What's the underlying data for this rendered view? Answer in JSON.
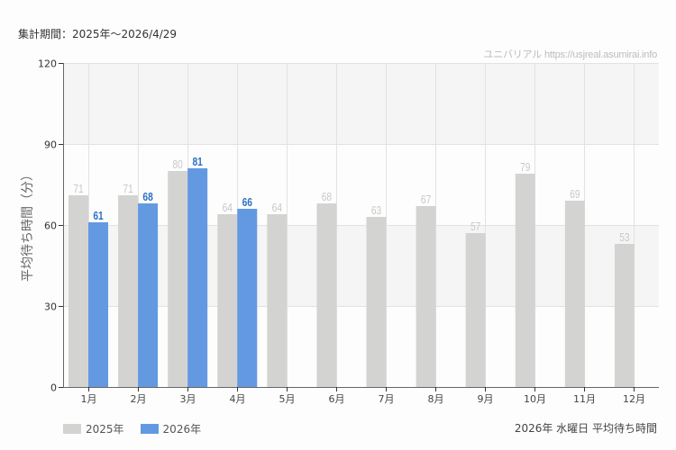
{
  "header": {
    "period": "集計期間：2025年～2026/4/29",
    "credit": "ユニバリアル  https://usjreal.asumirai.info"
  },
  "footer": {
    "caption": "2026年 水曜日 平均待ち時間"
  },
  "legend": [
    {
      "label": "2025年",
      "color": "#d3d4d2"
    },
    {
      "label": "2026年",
      "color": "#6399e1"
    }
  ],
  "colors": {
    "series_2025": "#d3d4d2",
    "series_2025_label": "#c8c8c8",
    "series_2026": "#6399e1",
    "series_2026_label": "#2d6fc4",
    "band": "#f4f5f4",
    "grid": "#e2e2e2",
    "axis": "#666666"
  },
  "chart_data": {
    "type": "bar",
    "title": "2026年 水曜日 平均待ち時間",
    "subtitle": "集計期間：2025年～2026/4/29",
    "xlabel": "",
    "ylabel": "平均待ち時間（分）",
    "ylim": [
      0,
      120
    ],
    "yticks": [
      0,
      30,
      60,
      90,
      120
    ],
    "grid": true,
    "legend_position": "bottom-left",
    "categories": [
      "1月",
      "2月",
      "3月",
      "4月",
      "5月",
      "6月",
      "7月",
      "8月",
      "9月",
      "10月",
      "11月",
      "12月"
    ],
    "series": [
      {
        "name": "2025年",
        "values": [
          71,
          71,
          80,
          64,
          64,
          68,
          63,
          67,
          57,
          79,
          69,
          53
        ]
      },
      {
        "name": "2026年",
        "values": [
          61,
          68,
          81,
          66,
          null,
          null,
          null,
          null,
          null,
          null,
          null,
          null
        ]
      }
    ]
  }
}
